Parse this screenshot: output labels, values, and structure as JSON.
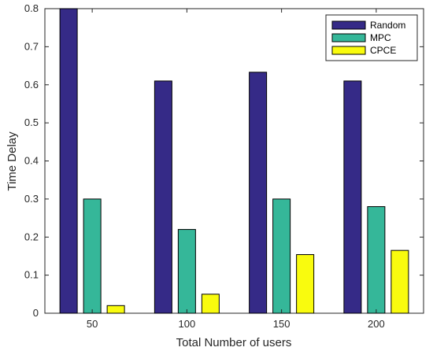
{
  "chart_data": {
    "type": "bar",
    "categories": [
      "50",
      "100",
      "150",
      "200"
    ],
    "series": [
      {
        "name": "Random",
        "values": [
          0.8,
          0.61,
          0.633,
          0.61
        ],
        "color": "#352a87"
      },
      {
        "name": "MPC",
        "values": [
          0.3,
          0.22,
          0.3,
          0.28
        ],
        "color": "#35b799"
      },
      {
        "name": "CPCE",
        "values": [
          0.02,
          0.05,
          0.154,
          0.165
        ],
        "color": "#f9fb0e"
      }
    ],
    "title": "",
    "xlabel": "Total Number of users",
    "ylabel": "Time Delay",
    "ylim": [
      0,
      0.8
    ],
    "yticks": [
      "0",
      "0.1",
      "0.2",
      "0.3",
      "0.4",
      "0.5",
      "0.6",
      "0.7",
      "0.8"
    ],
    "grid": false,
    "legend_position": "top-right"
  }
}
